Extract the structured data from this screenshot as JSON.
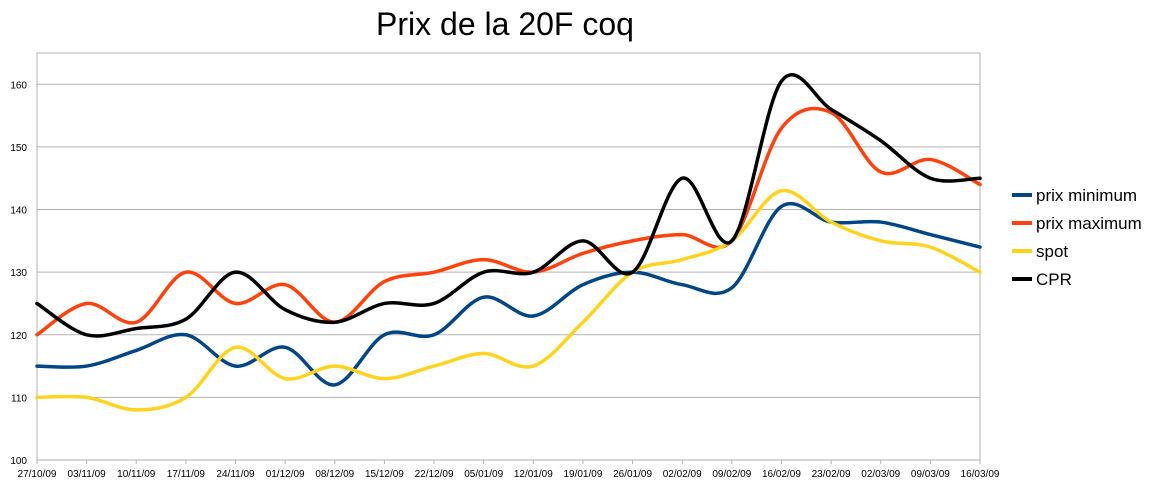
{
  "chart_data": {
    "type": "line",
    "title": "Prix de la 20F coq",
    "xlabel": "",
    "ylabel": "",
    "ylim": [
      100,
      165
    ],
    "yticks": [
      100,
      110,
      120,
      130,
      140,
      150,
      160
    ],
    "grid": true,
    "legend_position": "right",
    "categories": [
      "27/10/09",
      "03/11/09",
      "10/11/09",
      "17/11/09",
      "24/11/09",
      "01/12/09",
      "08/12/09",
      "15/12/09",
      "22/12/09",
      "05/01/09",
      "12/01/09",
      "19/01/09",
      "26/01/09",
      "02/02/09",
      "09/02/09",
      "16/02/09",
      "23/02/09",
      "02/03/09",
      "09/03/09",
      "16/03/09"
    ],
    "series": [
      {
        "name": "prix minimum",
        "color": "#004586",
        "values": [
          115,
          115,
          117.5,
          120,
          115,
          118,
          112,
          120,
          120,
          126,
          123,
          128,
          130,
          128,
          127.5,
          140.5,
          138,
          138,
          136,
          134
        ]
      },
      {
        "name": "prix maximum",
        "color": "#ff420e",
        "values": [
          120,
          125,
          122,
          130,
          125,
          128,
          122,
          128.5,
          130,
          132,
          130,
          133,
          135,
          136,
          135,
          153,
          155.5,
          146,
          148,
          144
        ]
      },
      {
        "name": "spot",
        "color": "#ffd320",
        "values": [
          110,
          110,
          108,
          110,
          118,
          113,
          115,
          113,
          115,
          117,
          115,
          122,
          130,
          132,
          135,
          143,
          138,
          135,
          134,
          130
        ]
      },
      {
        "name": "CPR",
        "color": "#000000",
        "values": [
          125,
          120,
          121,
          122.5,
          130,
          124,
          122,
          125,
          125,
          130,
          130,
          135,
          130,
          145,
          135,
          160.5,
          156,
          151,
          145,
          145
        ]
      }
    ]
  }
}
